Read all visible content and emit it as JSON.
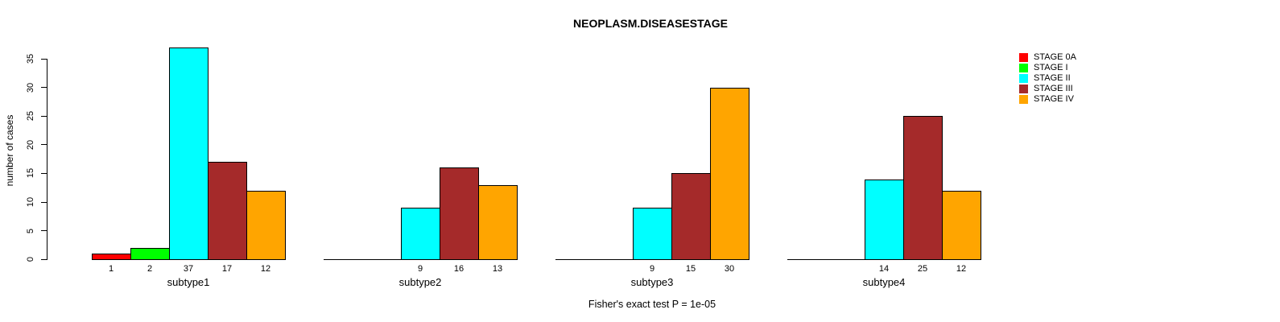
{
  "title": "NEOPLASM.DISEASESTAGE",
  "footer": "Fisher's exact test P = 1e-05",
  "y_axis": {
    "label": "number of cases"
  },
  "legend": {
    "position": "top-right"
  },
  "chart_data": {
    "type": "bar",
    "title": "NEOPLASM.DISEASESTAGE",
    "xlabel": "",
    "ylabel": "number of cases",
    "ylim": [
      0,
      35
    ],
    "yticks": [
      0,
      5,
      10,
      15,
      20,
      25,
      30,
      35
    ],
    "grid": false,
    "legend_position": "right",
    "annotation": "Fisher's exact test P = 1e-05",
    "categories": [
      "subtype1",
      "subtype2",
      "subtype3",
      "subtype4"
    ],
    "series": [
      {
        "name": "STAGE 0A",
        "color": "#FF0000",
        "values": [
          1,
          0,
          0,
          0
        ]
      },
      {
        "name": "STAGE I",
        "color": "#00FF00",
        "values": [
          2,
          0,
          0,
          0
        ]
      },
      {
        "name": "STAGE II",
        "color": "#00FFFF",
        "values": [
          37,
          9,
          9,
          14
        ]
      },
      {
        "name": "STAGE III",
        "color": "#A52A2A",
        "values": [
          17,
          16,
          15,
          25
        ]
      },
      {
        "name": "STAGE IV",
        "color": "#FFA500",
        "values": [
          12,
          13,
          30,
          12
        ]
      }
    ],
    "bar_value_labels": "shown under each non-zero bar"
  }
}
